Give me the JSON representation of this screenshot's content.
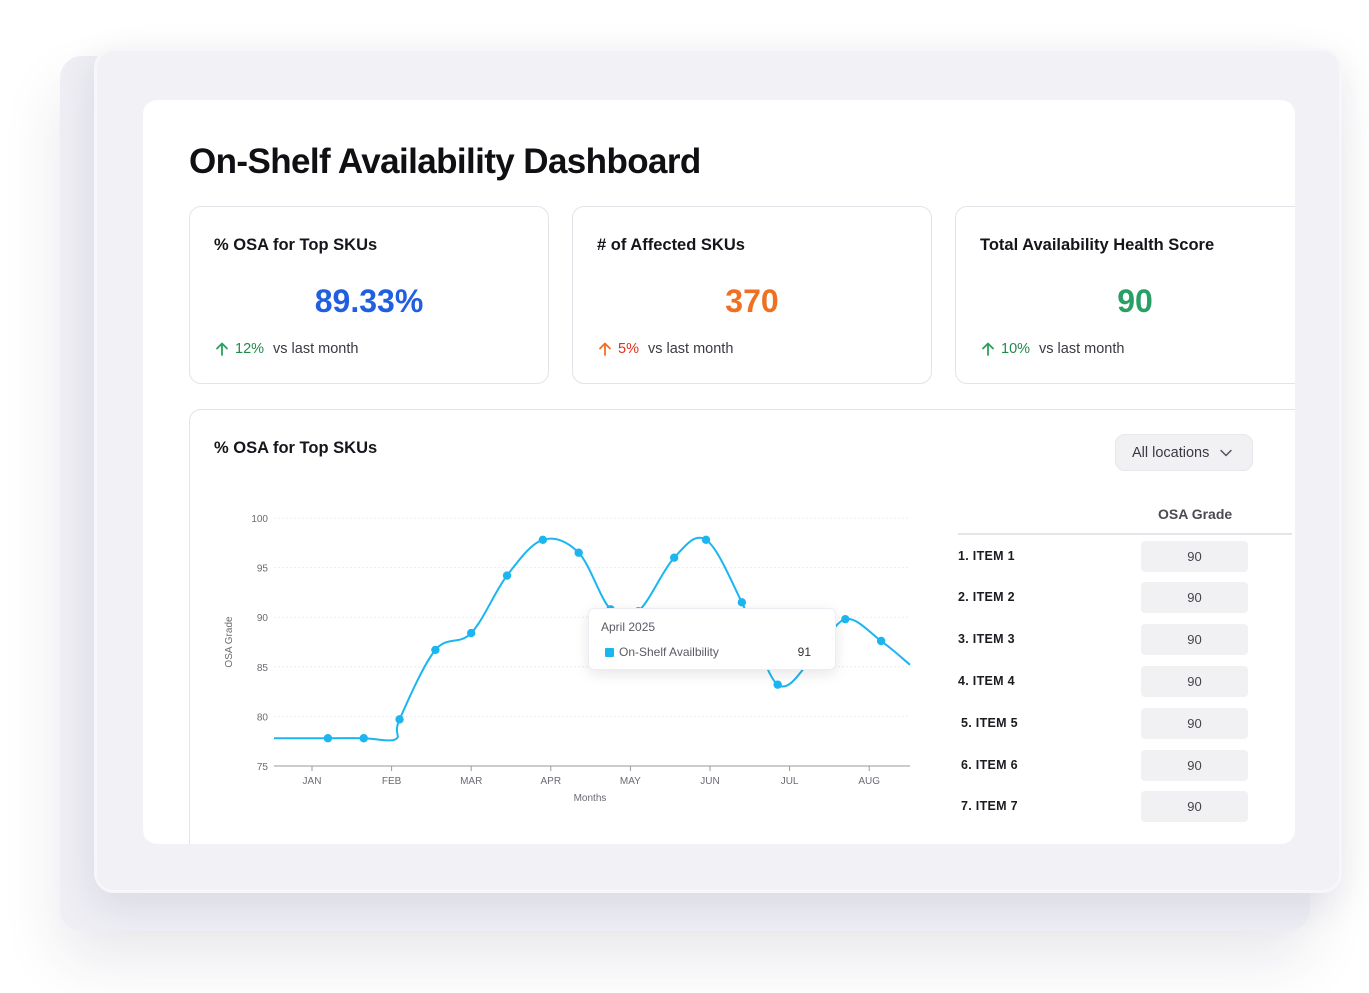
{
  "page": {
    "title": "On-Shelf Availability Dashboard"
  },
  "kpis": [
    {
      "title": "% OSA for Top SKUs",
      "value": "89.33%",
      "change": "12%",
      "change_text": "vs last month",
      "value_color": "#1f5fe0",
      "change_color": "#1f8a4a",
      "arrow_color": "#2aa05b"
    },
    {
      "title": "# of Affected SKUs",
      "value": "370",
      "change": "5%",
      "change_text": "vs last month",
      "value_color": "#f07022",
      "change_color": "#e0301e",
      "arrow_color": "#f07022"
    },
    {
      "title": "Total Availability Health Score",
      "value": "90",
      "change": "10%",
      "change_text": "vs last month",
      "value_color": "#28a065",
      "change_color": "#1f8a4a",
      "arrow_color": "#2aa05b"
    }
  ],
  "panel": {
    "title": "% OSA for Top SKUs",
    "location_select": "All locations"
  },
  "tooltip": {
    "title": "April 2025",
    "series": "On-Shelf Availbility",
    "value": "91"
  },
  "grades": {
    "header": "OSA Grade",
    "rows": [
      {
        "label": "1. ITEM 1",
        "value": "90"
      },
      {
        "label": "2. ITEM 2",
        "value": "90"
      },
      {
        "label": "3. ITEM 3",
        "value": "90"
      },
      {
        "label": "4. ITEM 4",
        "value": "90"
      },
      {
        "label": "5. ITEM 5",
        "value": "90"
      },
      {
        "label": "6. ITEM 6",
        "value": "90"
      },
      {
        "label": "7. ITEM 7",
        "value": "90"
      }
    ]
  },
  "chart_data": {
    "type": "line",
    "xlabel": "Months",
    "ylabel": "OSA Grade",
    "ylim": [
      75,
      100
    ],
    "yticks": [
      75,
      80,
      85,
      90,
      95,
      100
    ],
    "xticks": [
      "JAN",
      "FEB",
      "MAR",
      "APR",
      "MAY",
      "JUN",
      "JUL",
      "AUG"
    ],
    "grid": true,
    "line_color": "#1bb6f0",
    "series": [
      {
        "x": [
          0.2,
          0.65,
          1.1,
          1.55,
          2.0,
          2.45,
          2.9,
          3.35,
          3.75,
          4.1,
          4.55,
          4.95,
          5.4,
          5.85,
          6.3,
          6.7,
          7.15
        ],
        "values": [
          77.8,
          77.8,
          79.7,
          86.7,
          88.4,
          94.2,
          97.8,
          96.5,
          90.8,
          90.6,
          96.0,
          97.8,
          91.5,
          83.2,
          86.0,
          89.8,
          87.6
        ]
      }
    ]
  }
}
